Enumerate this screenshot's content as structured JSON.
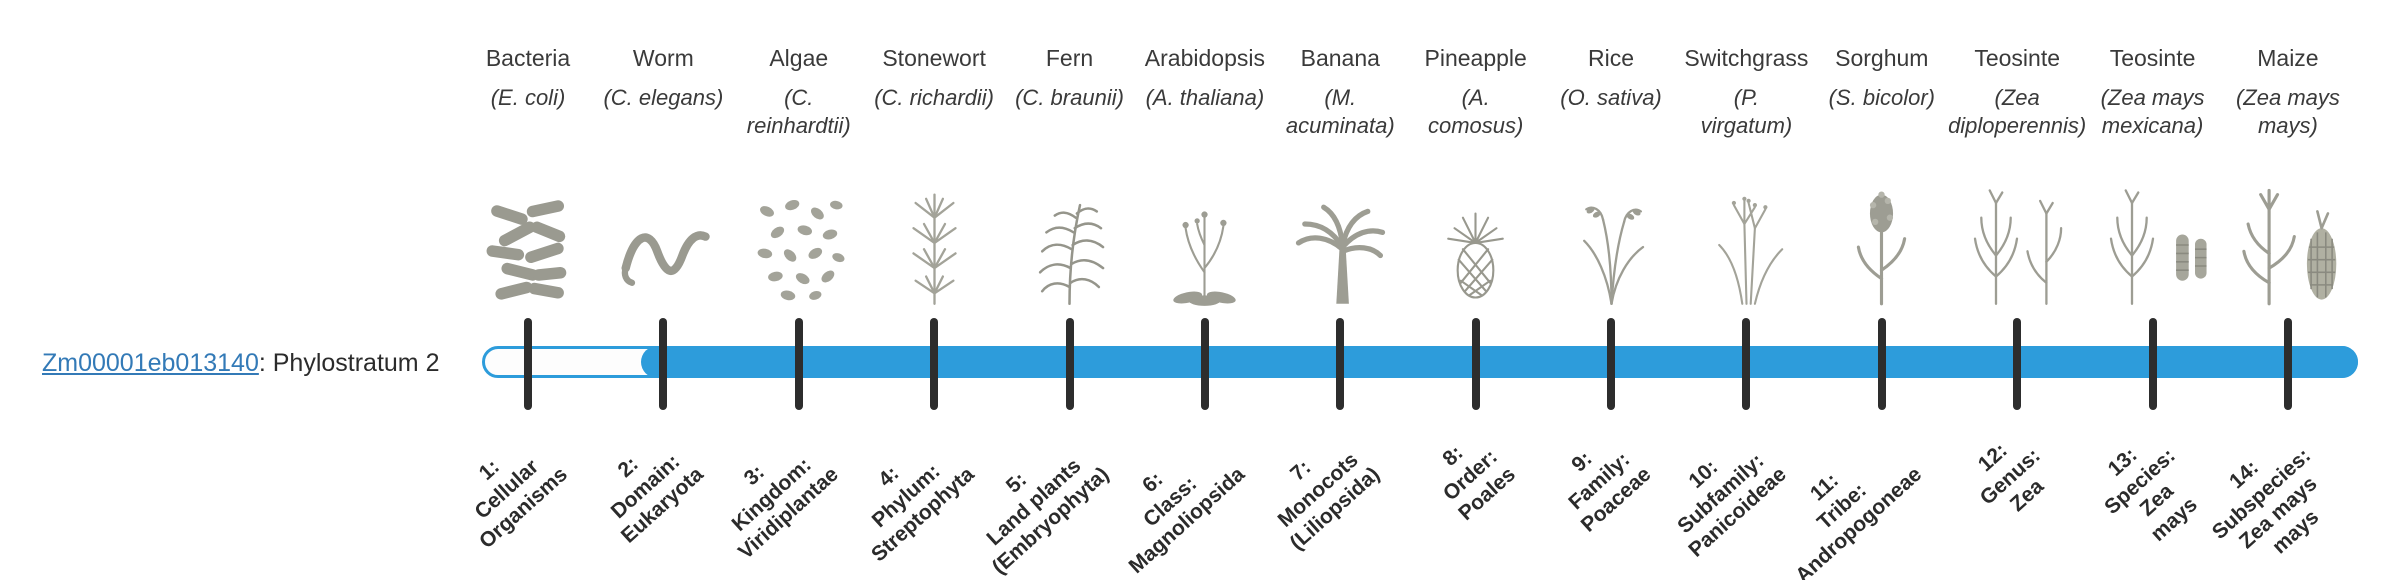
{
  "gene": {
    "id": "Zm00001eb013140",
    "suffix": ": Phylostratum 2",
    "link_color": "#337ab7"
  },
  "timeline": {
    "bar_color": "#2D9CDB",
    "track_background": "#fdfdfd",
    "tick_color": "#2d2d2d",
    "filled_from_stratum": 2,
    "total_strata": 14
  },
  "organisms": [
    {
      "common": "Bacteria",
      "sci": "(E. coli)",
      "icon": "bacteria",
      "stratum_label": "1:\nCellular\nOrganisms"
    },
    {
      "common": "Worm",
      "sci": "(C. elegans)",
      "icon": "worm",
      "stratum_label": "2:\nDomain:\nEukaryota"
    },
    {
      "common": "Algae",
      "sci": "(C.\nreinhardtii)",
      "icon": "algae",
      "stratum_label": "3:\nKingdom:\nViridiplantae"
    },
    {
      "common": "Stonewort",
      "sci": "(C. richardii)",
      "icon": "stonewort",
      "stratum_label": "4:\nPhylum:\nStreptophyta"
    },
    {
      "common": "Fern",
      "sci": "(C. braunii)",
      "icon": "fern",
      "stratum_label": "5:\nLand plants\n(Embryophyta)"
    },
    {
      "common": "Arabidopsis",
      "sci": "(A. thaliana)",
      "icon": "arabidopsis",
      "stratum_label": "6:\nClass:\nMagnoliopsida"
    },
    {
      "common": "Banana",
      "sci": "(M.\nacuminata)",
      "icon": "banana",
      "stratum_label": "7:\nMonocots\n(Liliopsida)"
    },
    {
      "common": "Pineapple",
      "sci": "(A.\ncomosus)",
      "icon": "pineapple",
      "stratum_label": "8:\nOrder:\nPoales"
    },
    {
      "common": "Rice",
      "sci": "(O. sativa)",
      "icon": "rice",
      "stratum_label": "9:\nFamily:\nPoaceae"
    },
    {
      "common": "Switchgrass",
      "sci": "(P.\nvirgatum)",
      "icon": "switchgrass",
      "stratum_label": "10:\nSubfamily:\nPanicoideae"
    },
    {
      "common": "Sorghum",
      "sci": "(S. bicolor)",
      "icon": "sorghum",
      "stratum_label": "11:\nTribe:\nAndropogoneae"
    },
    {
      "common": "Teosinte",
      "sci": "(Zea\ndiploperennis)",
      "icon": "teosinte",
      "stratum_label": "12:\nGenus:\nZea"
    },
    {
      "common": "Teosinte",
      "sci": "(Zea mays\nmexicana)",
      "icon": "teosinte-ear",
      "stratum_label": "13:\nSpecies:\nZea\nmays"
    },
    {
      "common": "Maize",
      "sci": "(Zea mays\nmays)",
      "icon": "maize",
      "stratum_label": "14:\nSubspecies:\nZea mays\nmays"
    }
  ]
}
